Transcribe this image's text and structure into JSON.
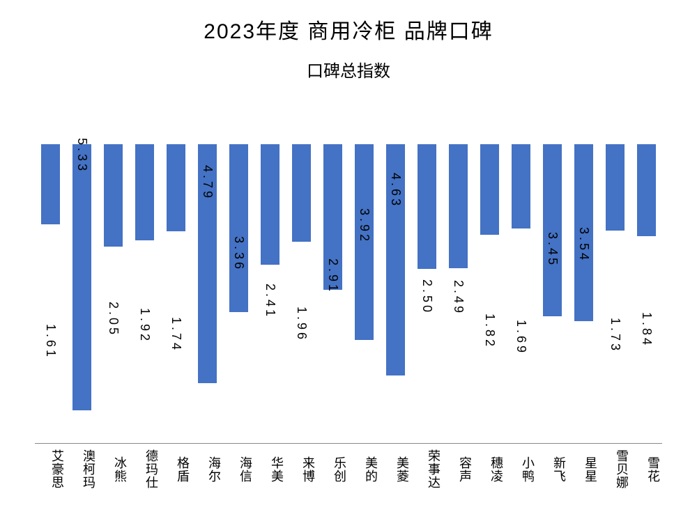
{
  "chart": {
    "type": "bar",
    "title": "2023年度 商用冷柜 品牌口碑",
    "subtitle": "口碑总指数",
    "title_fontsize": 30,
    "subtitle_fontsize": 24,
    "label_fontsize": 18,
    "xlabel_fontsize": 18,
    "background_color": "#ffffff",
    "bar_color": "#4472c4",
    "baseline_color": "#888888",
    "text_color": "#000000",
    "ylim": [
      0,
      6.0
    ],
    "bar_width": 0.62,
    "categories": [
      "艾豪思",
      "澳柯玛",
      "冰熊",
      "德玛仕",
      "格盾",
      "海尔",
      "海信",
      "华美",
      "来博",
      "乐创",
      "美的",
      "美菱",
      "荣事达",
      "容声",
      "穗凌",
      "小鸭",
      "新飞",
      "星星",
      "雪贝娜",
      "雪花"
    ],
    "values": [
      1.61,
      5.33,
      2.05,
      1.92,
      1.74,
      4.79,
      3.36,
      2.41,
      1.96,
      2.91,
      3.92,
      4.63,
      2.5,
      2.49,
      1.82,
      1.69,
      3.45,
      3.54,
      1.73,
      1.84
    ],
    "value_labels": [
      "1.61",
      "5.33",
      "2.05",
      "1.92",
      "1.74",
      "4.79",
      "3.36",
      "2.41",
      "1.96",
      "2.91",
      "3.92",
      "4.63",
      "2.50",
      "2.49",
      "1.82",
      "1.69",
      "3.45",
      "3.54",
      "1.73",
      "1.84"
    ]
  }
}
